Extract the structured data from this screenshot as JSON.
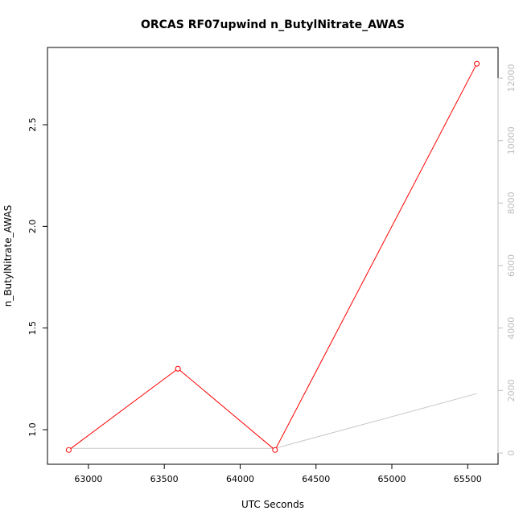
{
  "chart_data": {
    "type": "line",
    "title": "ORCAS RF07upwind n_ButylNitrate_AWAS",
    "xlabel": "UTC Seconds",
    "ylabel": "n_ButylNitrate_AWAS",
    "xlim": [
      62730,
      65700
    ],
    "ylim": [
      0.83,
      2.88
    ],
    "x_ticks": [
      63000,
      63500,
      64000,
      64500,
      65000,
      65500
    ],
    "y_ticks": [
      1.0,
      1.5,
      2.0,
      2.5
    ],
    "y_tick_labels": [
      "1.0",
      "1.5",
      "2.0",
      "2.5"
    ],
    "y2lim": [
      -360,
      12980
    ],
    "y2_ticks": [
      0,
      2000,
      4000,
      6000,
      8000,
      10000,
      12000
    ],
    "series": [
      {
        "axis": "left",
        "color": "#ff0000",
        "markers": "open-circle",
        "x": [
          62870,
          63590,
          64230,
          65560
        ],
        "y": [
          0.9,
          1.3,
          0.9,
          2.8
        ]
      },
      {
        "axis": "right",
        "color": "#c8c8c8",
        "markers": "none",
        "x": [
          62870,
          64230,
          65560
        ],
        "y": [
          150,
          150,
          1900
        ]
      }
    ]
  }
}
